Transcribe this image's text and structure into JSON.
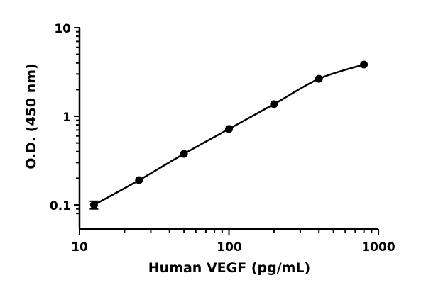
{
  "chart_data": {
    "type": "scatter",
    "title": "",
    "xlabel": "Human VEGF (pg/mL)",
    "ylabel": "O.D. (450 nm)",
    "xscale": "log",
    "yscale": "log",
    "xlim": [
      10,
      1000
    ],
    "ylim": [
      0.1,
      10
    ],
    "xticks": [
      10,
      100,
      1000
    ],
    "xtick_labels": [
      "10",
      "100",
      "1000"
    ],
    "yticks": [
      0.1,
      1,
      10
    ],
    "ytick_labels": [
      "0.1",
      "1",
      "10"
    ],
    "grid": false,
    "fit_curve": true,
    "series": [
      {
        "x": [
          12.5,
          25,
          50,
          100,
          200,
          400,
          800
        ],
        "y": [
          0.1,
          0.19,
          0.377,
          0.72,
          1.37,
          2.65,
          3.84
        ],
        "error": [
          0.01,
          0,
          0,
          0,
          0,
          0,
          0
        ],
        "color": "#000000"
      }
    ]
  }
}
